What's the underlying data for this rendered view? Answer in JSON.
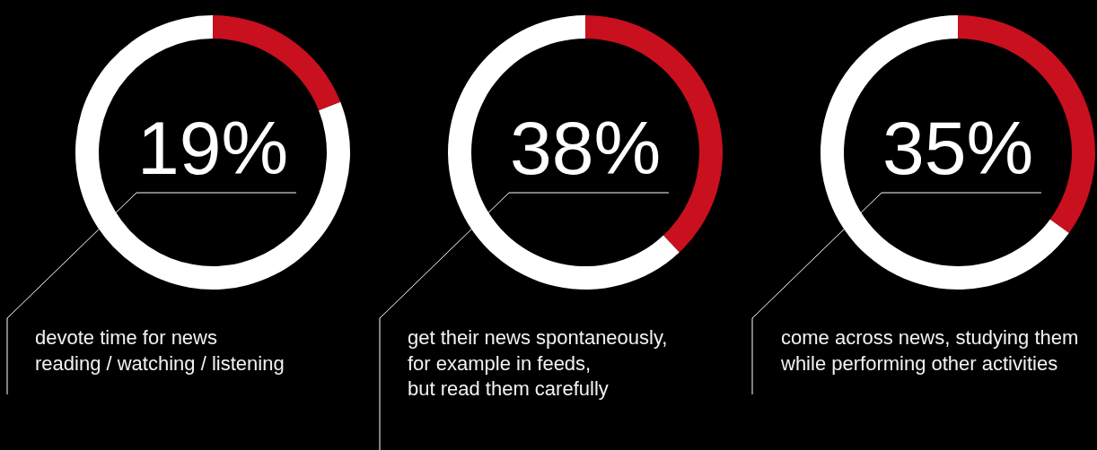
{
  "chart_data": [
    {
      "type": "donut",
      "categories": [
        null,
        null
      ],
      "values": [
        19,
        81
      ],
      "colors": [
        "#c8101e",
        "#ffffff"
      ],
      "value_labels": [
        "19%",
        null
      ],
      "annotations": [
        "devote time for news\nreading / watching / listening"
      ]
    },
    {
      "type": "donut",
      "categories": [
        null,
        null
      ],
      "values": [
        38,
        62
      ],
      "colors": [
        "#c8101e",
        "#ffffff"
      ],
      "value_labels": [
        "38%",
        null
      ],
      "annotations": [
        "get their news spontaneously,\nfor example in feeds,\nbut read them carefully"
      ]
    },
    {
      "type": "donut",
      "categories": [
        null,
        null
      ],
      "values": [
        35,
        65
      ],
      "colors": [
        "#c8101e",
        "#ffffff"
      ],
      "value_labels": [
        "35%",
        null
      ],
      "annotations": [
        "come across news, studying them\nwhile performing other activities"
      ]
    }
  ]
}
